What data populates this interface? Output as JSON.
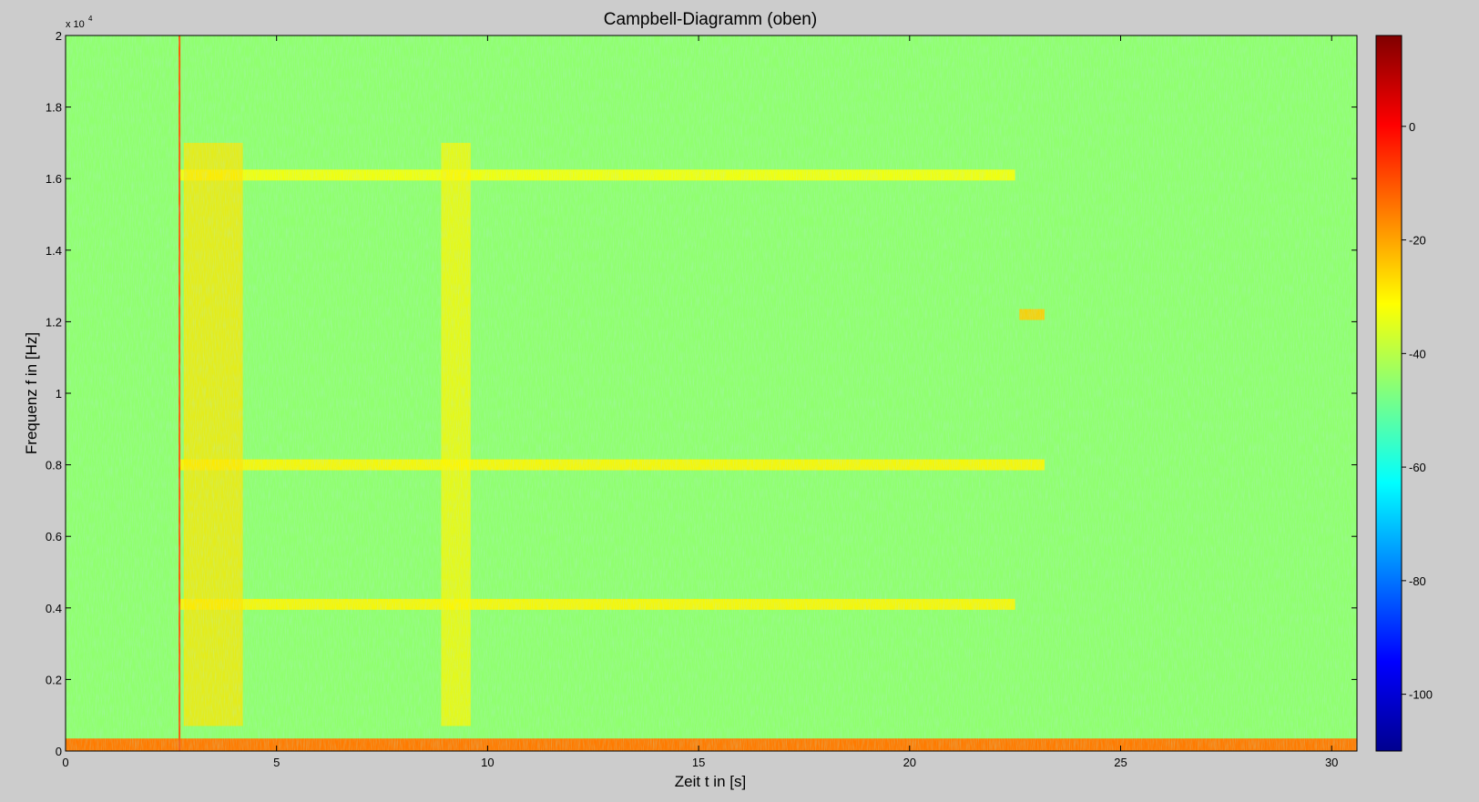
{
  "window": {
    "background": "#cccccc"
  },
  "chart_data": {
    "type": "heatmap",
    "title": "Campbell-Diagramm (oben)",
    "xlabel": "Zeit t in [s]",
    "ylabel": "Frequenz f in [Hz]",
    "y_multiplier_label": "x 10",
    "y_multiplier_exponent": "4",
    "xlim": [
      0,
      30.6
    ],
    "ylim": [
      0,
      20000
    ],
    "x_ticks": [
      0,
      5,
      10,
      15,
      20,
      25,
      30
    ],
    "x_tick_labels": [
      "0",
      "5",
      "10",
      "15",
      "20",
      "25",
      "30"
    ],
    "y_ticks": [
      0,
      2000,
      4000,
      6000,
      8000,
      10000,
      12000,
      14000,
      16000,
      18000,
      20000
    ],
    "y_tick_labels": [
      "0",
      "0.2",
      "0.4",
      "0.6",
      "0.8",
      "1",
      "1.2",
      "1.4",
      "1.6",
      "1.8",
      "2"
    ],
    "colormap": "jet",
    "colorbar": {
      "range": [
        -110,
        16
      ],
      "ticks": [
        0,
        -20,
        -40,
        -60,
        -80,
        -100
      ],
      "tick_labels": [
        "0",
        "-20",
        "-40",
        "-60",
        "-80",
        "-100"
      ]
    },
    "background_level": -45,
    "features": [
      {
        "kind": "harmonic",
        "freq": 16100,
        "t_start": 2.7,
        "t_end": 22.5,
        "level": -32
      },
      {
        "kind": "harmonic",
        "freq": 8000,
        "t_start": 2.7,
        "t_end": 23.2,
        "level": -30
      },
      {
        "kind": "harmonic",
        "freq": 4100,
        "t_start": 2.7,
        "t_end": 22.5,
        "level": -30
      },
      {
        "kind": "burst",
        "t_start": 2.8,
        "t_end": 4.2,
        "f_low": 700,
        "f_high": 17000,
        "level": -28
      },
      {
        "kind": "burst",
        "t_start": 8.9,
        "t_end": 9.6,
        "f_low": 700,
        "f_high": 17000,
        "level": -30
      },
      {
        "kind": "low_freq_band",
        "f_low": 0,
        "f_high": 350,
        "t_start": 0,
        "t_end": 30.6,
        "level": -15
      },
      {
        "kind": "vertical_line",
        "t": 2.7,
        "level": -10
      },
      {
        "kind": "spot",
        "t_start": 22.6,
        "t_end": 23.2,
        "freq": 12200,
        "level": -25
      }
    ]
  }
}
